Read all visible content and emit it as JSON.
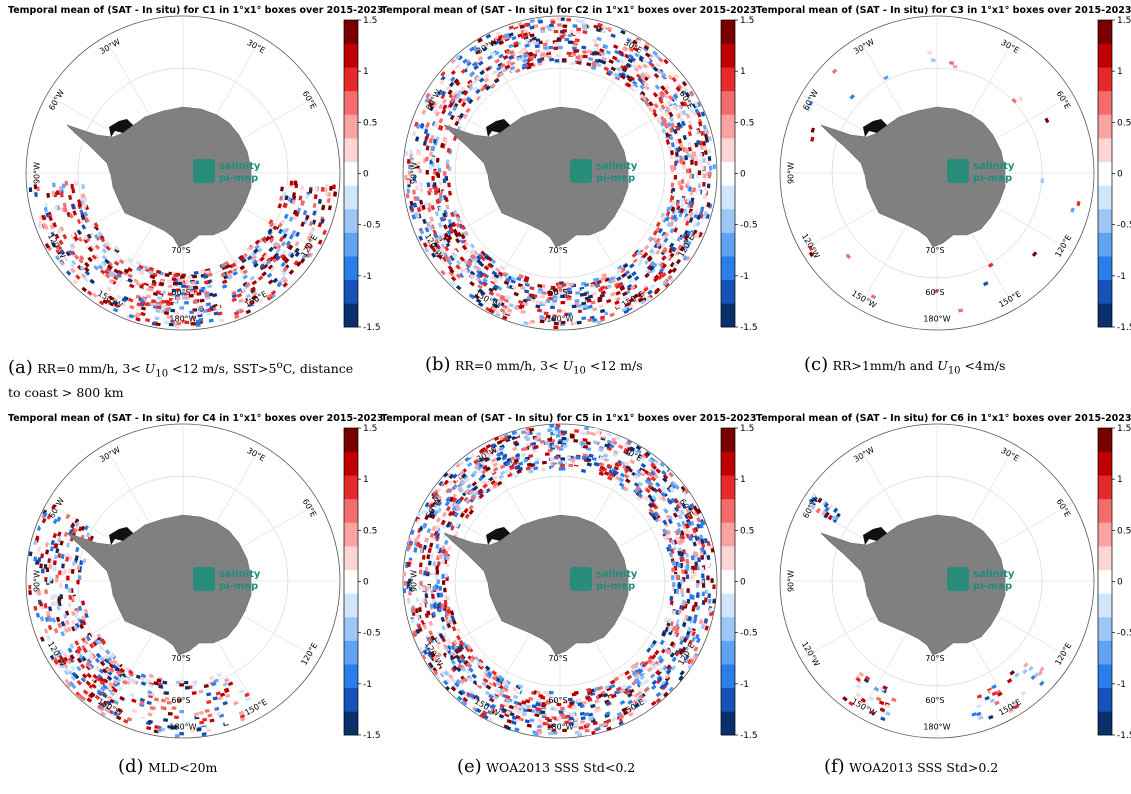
{
  "colorbar": {
    "ticks": [
      "1.5",
      "1",
      "0.5",
      "0",
      "-0.5",
      "-1",
      "-1.5"
    ],
    "vmin": -1.5,
    "vmax": 1.5,
    "colors": [
      "#08306b",
      "#1553b8",
      "#2b7de9",
      "#5ea4f2",
      "#9cc6f6",
      "#d2e6fb",
      "#ffffff",
      "#fdd5d5",
      "#f9a3a3",
      "#f36b6b",
      "#e52a2a",
      "#c00000",
      "#7a0000"
    ]
  },
  "lon_labels": [
    "30°W",
    "30°E",
    "60°W",
    "60°E",
    "90°W",
    "120°W",
    "120°E",
    "150°W",
    "150°E",
    "180°W"
  ],
  "lat_labels": [
    "70°S",
    "60°S"
  ],
  "logo": {
    "line1": "salinity",
    "line2": "pi-mep"
  },
  "panels": [
    {
      "title": "Temporal mean of (SAT - In situ) for C1 in 1°x1° boxes over 2015-2023",
      "caption_tag": "(a)",
      "caption_text": "RR=0 mm/h, 3< U10 <12 m/s, SST>5°C, distance to coast > 800 km"
    },
    {
      "title": "Temporal mean of (SAT - In situ) for C2 in 1°x1° boxes over 2015-2023",
      "caption_tag": "(b)",
      "caption_text": "RR=0 mm/h, 3< U10 <12 m/s"
    },
    {
      "title": "Temporal mean of (SAT - In situ) for C3 in 1°x1° boxes over 2015-2023",
      "caption_tag": "(c)",
      "caption_text": "RR>1mm/h and U10 <4m/s"
    },
    {
      "title": "Temporal mean of (SAT - In situ) for C4 in 1°x1° boxes over 2015-2023",
      "caption_tag": "(d)",
      "caption_text": "MLD<20m"
    },
    {
      "title": "Temporal mean of (SAT - In situ) for C5 in 1°x1° boxes over 2015-2023",
      "caption_tag": "(e)",
      "caption_text": "WOA2013 SSS Std<0.2"
    },
    {
      "title": "Temporal mean of (SAT - In situ) for C6 in 1°x1° boxes over 2015-2023",
      "caption_tag": "(f)",
      "caption_text": "WOA2013 SSS Std>0.2"
    }
  ]
}
